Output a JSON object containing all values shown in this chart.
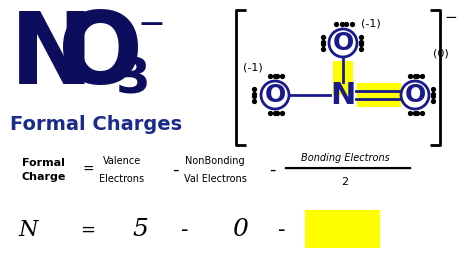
{
  "bg_color": "#ffffff",
  "title_color": "#0d0d5e",
  "subtitle_color": "#1a2b8c",
  "highlight_color": "#ffff00",
  "dark_blue": "#1a1a8c",
  "formula_label_top": "Formal",
  "formula_label_bot": "Charge",
  "col1_top": "Valence",
  "col1_bot": "Electrons",
  "col2_top": "NonBonding",
  "col2_bot": "Val Electrons",
  "col3_top": "Bonding Electrons",
  "col3_bot": "2",
  "minus": "-",
  "superscript": "−"
}
